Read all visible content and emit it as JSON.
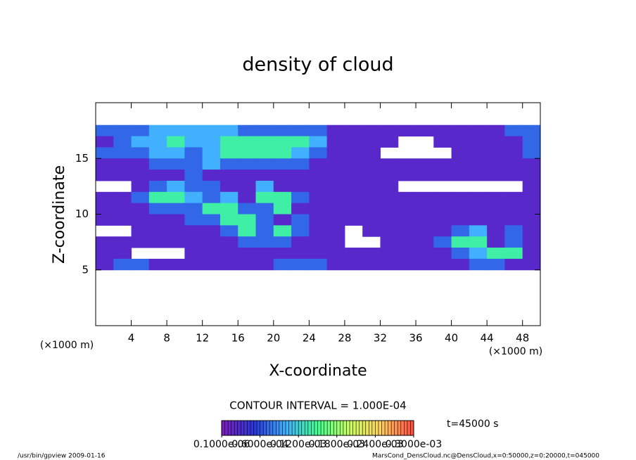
{
  "chart_data": {
    "type": "heatmap",
    "title": "density of cloud",
    "x_label": "X-coordinate",
    "y_label": "Z-coordinate",
    "x_unit": "(×1000 m)",
    "y_unit": "(×1000 m)",
    "contour_interval": "CONTOUR INTERVAL = 1.000E-04",
    "time_label": "t=45000 s",
    "footer_left": "/usr/bin/gpview  2009-01-16",
    "footer_right": "MarsCond_DensCloud.nc@DensCloud,x=0:50000,z=0:20000,t=045000",
    "xlim": [
      0,
      50
    ],
    "ylim": [
      0,
      20
    ],
    "xticks": [
      4,
      8,
      12,
      16,
      20,
      24,
      28,
      32,
      36,
      40,
      44,
      48
    ],
    "yticks": [
      5,
      10,
      15
    ],
    "x": [
      1,
      3,
      5,
      7,
      9,
      11,
      13,
      15,
      17,
      19,
      21,
      23,
      25,
      27,
      29,
      31,
      33,
      35,
      37,
      39,
      41,
      43,
      45,
      47,
      49
    ],
    "y": [
      17.5,
      16.5,
      15.5,
      14.5,
      13.5,
      12.5,
      11.5,
      10.5,
      9.5,
      8.5,
      7.5,
      6.5,
      5.5
    ],
    "values": [
      [
        7e-05,
        7e-05,
        7e-05,
        0.0001,
        0.0001,
        0.0001,
        0.0001,
        0.0001,
        7e-05,
        7e-05,
        7e-05,
        7e-05,
        7e-05,
        2e-05,
        2e-05,
        2e-05,
        2e-05,
        2e-05,
        2e-05,
        2e-05,
        2e-05,
        2e-05,
        2e-05,
        7e-05,
        7e-05
      ],
      [
        2e-05,
        7e-05,
        0.0001,
        0.0001,
        0.00014,
        0.0001,
        0.0001,
        0.00014,
        0.00014,
        0.00014,
        0.00014,
        0.00014,
        0.0001,
        2e-05,
        2e-05,
        2e-05,
        2e-05,
        null,
        null,
        2e-05,
        2e-05,
        2e-05,
        2e-05,
        2e-05,
        7e-05
      ],
      [
        7e-05,
        7e-05,
        7e-05,
        0.0001,
        0.0001,
        7e-05,
        0.0001,
        0.00014,
        0.00014,
        0.00014,
        0.00014,
        0.0001,
        7e-05,
        2e-05,
        2e-05,
        2e-05,
        null,
        null,
        null,
        null,
        2e-05,
        2e-05,
        2e-05,
        2e-05,
        7e-05
      ],
      [
        2e-05,
        2e-05,
        2e-05,
        7e-05,
        7e-05,
        7e-05,
        0.0001,
        7e-05,
        7e-05,
        7e-05,
        7e-05,
        7e-05,
        2e-05,
        2e-05,
        2e-05,
        2e-05,
        2e-05,
        2e-05,
        2e-05,
        2e-05,
        2e-05,
        2e-05,
        2e-05,
        2e-05,
        2e-05
      ],
      [
        2e-05,
        2e-05,
        2e-05,
        2e-05,
        2e-05,
        7e-05,
        2e-05,
        2e-05,
        2e-05,
        2e-05,
        2e-05,
        2e-05,
        2e-05,
        2e-05,
        2e-05,
        2e-05,
        2e-05,
        2e-05,
        2e-05,
        2e-05,
        2e-05,
        2e-05,
        2e-05,
        2e-05,
        2e-05
      ],
      [
        null,
        null,
        2e-05,
        7e-05,
        0.0001,
        7e-05,
        7e-05,
        2e-05,
        2e-05,
        0.0001,
        2e-05,
        2e-05,
        2e-05,
        2e-05,
        2e-05,
        2e-05,
        2e-05,
        null,
        null,
        null,
        null,
        null,
        null,
        null,
        2e-05
      ],
      [
        2e-05,
        2e-05,
        7e-05,
        0.00014,
        0.00014,
        0.0001,
        7e-05,
        0.0001,
        2e-05,
        0.00014,
        0.00014,
        7e-05,
        2e-05,
        2e-05,
        2e-05,
        2e-05,
        2e-05,
        2e-05,
        2e-05,
        2e-05,
        2e-05,
        2e-05,
        2e-05,
        2e-05,
        2e-05
      ],
      [
        2e-05,
        2e-05,
        2e-05,
        7e-05,
        7e-05,
        7e-05,
        0.00014,
        0.00014,
        7e-05,
        7e-05,
        0.00014,
        2e-05,
        2e-05,
        2e-05,
        2e-05,
        2e-05,
        2e-05,
        2e-05,
        2e-05,
        2e-05,
        2e-05,
        2e-05,
        2e-05,
        2e-05,
        2e-05
      ],
      [
        2e-05,
        2e-05,
        2e-05,
        2e-05,
        2e-05,
        7e-05,
        7e-05,
        0.00014,
        0.00014,
        7e-05,
        2e-05,
        7e-05,
        2e-05,
        2e-05,
        2e-05,
        2e-05,
        2e-05,
        2e-05,
        2e-05,
        2e-05,
        2e-05,
        2e-05,
        2e-05,
        2e-05,
        2e-05
      ],
      [
        null,
        null,
        2e-05,
        2e-05,
        2e-05,
        2e-05,
        2e-05,
        7e-05,
        0.00014,
        7e-05,
        0.00014,
        7e-05,
        2e-05,
        2e-05,
        null,
        2e-05,
        2e-05,
        2e-05,
        2e-05,
        2e-05,
        7e-05,
        0.0001,
        2e-05,
        7e-05,
        2e-05
      ],
      [
        2e-05,
        2e-05,
        2e-05,
        2e-05,
        2e-05,
        2e-05,
        2e-05,
        2e-05,
        7e-05,
        7e-05,
        7e-05,
        2e-05,
        2e-05,
        2e-05,
        null,
        null,
        2e-05,
        2e-05,
        2e-05,
        7e-05,
        0.00014,
        0.00014,
        2e-05,
        7e-05,
        2e-05
      ],
      [
        2e-05,
        2e-05,
        null,
        null,
        null,
        2e-05,
        2e-05,
        2e-05,
        2e-05,
        2e-05,
        2e-05,
        2e-05,
        2e-05,
        2e-05,
        2e-05,
        2e-05,
        2e-05,
        2e-05,
        2e-05,
        2e-05,
        7e-05,
        0.0001,
        0.00014,
        0.00014,
        2e-05
      ],
      [
        2e-05,
        7e-05,
        7e-05,
        2e-05,
        2e-05,
        2e-05,
        2e-05,
        2e-05,
        2e-05,
        2e-05,
        7e-05,
        7e-05,
        7e-05,
        2e-05,
        2e-05,
        2e-05,
        2e-05,
        2e-05,
        2e-05,
        2e-05,
        2e-05,
        7e-05,
        7e-05,
        2e-05,
        2e-05
      ]
    ],
    "colormap": [
      "#7a1ec0",
      "#2838d8",
      "#40b0ff",
      "#40ff90",
      "#c8ff60",
      "#ffd060",
      "#ff5040"
    ],
    "colorbar_lim": [
      0,
      0.0003
    ],
    "colorbar_ticks": [
      {
        "value": 1e-07,
        "label": "0.1000e-06"
      },
      {
        "value": 6e-05,
        "label": "0.6000e-04"
      },
      {
        "value": 0.00012,
        "label": "0.1200e-03"
      },
      {
        "value": 0.00018,
        "label": "0.1800e-03"
      },
      {
        "value": 0.00024,
        "label": "0.2400e-03"
      },
      {
        "value": 0.0003,
        "label": "0.3000e-03"
      }
    ]
  }
}
